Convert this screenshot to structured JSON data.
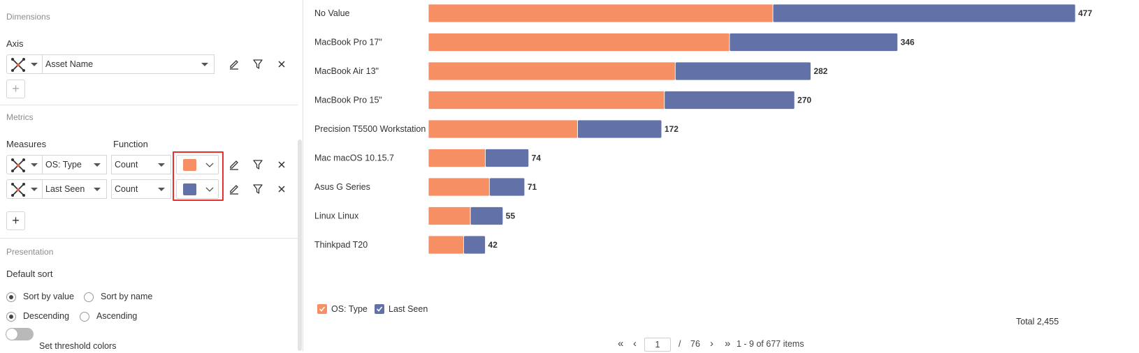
{
  "config": {
    "dimensions": {
      "section_title": "Dimensions",
      "axis_label": "Axis",
      "axis_field": "Asset Name",
      "add_label": "+"
    },
    "metrics": {
      "section_title": "Metrics",
      "measures_label": "Measures",
      "function_label": "Function",
      "rows": [
        {
          "measure": "OS: Type",
          "function": "Count",
          "color": "#f68f64"
        },
        {
          "measure": "Last Seen",
          "function": "Count",
          "color": "#6272a8"
        }
      ],
      "add_label": "+"
    },
    "presentation": {
      "section_title": "Presentation",
      "default_sort_label": "Default sort",
      "sort_by_value": "Sort by value",
      "sort_by_name": "Sort by name",
      "descending": "Descending",
      "ascending": "Ascending",
      "threshold_label": "Set threshold colors"
    },
    "icons": {
      "drag": "drag-move-icon",
      "edit": "pencil-icon",
      "filter": "funnel-icon",
      "remove": "close-icon",
      "chevron": "chevron-down-icon"
    }
  },
  "chart_data": {
    "type": "bar",
    "orientation": "horizontal",
    "stacked": true,
    "categories": [
      "No Value",
      "MacBook Pro 17\"",
      "MacBook Air 13\"",
      "MacBook Pro 15\"",
      "Precision T5500 Workstation",
      "Mac macOS 10.15.7",
      "Asus G Series",
      "Linux Linux",
      "Thinkpad T20"
    ],
    "series": [
      {
        "name": "OS: Type",
        "color": "#f68f64",
        "values": [
          254,
          222,
          182,
          174,
          110,
          42,
          45,
          31,
          26
        ]
      },
      {
        "name": "Last Seen",
        "color": "#6272a8",
        "values": [
          223,
          124,
          100,
          96,
          62,
          32,
          26,
          24,
          16
        ]
      }
    ],
    "totals": [
      "477",
      "346",
      "282",
      "270",
      "172",
      "74",
      "71",
      "55",
      "42"
    ],
    "xlim": [
      0,
      477
    ],
    "legend_position": "bottom-left"
  },
  "legend": {
    "items": [
      "OS: Type",
      "Last Seen"
    ]
  },
  "summary": {
    "total": "Total 2,455"
  },
  "pagination": {
    "current_page": "1",
    "separator": "/",
    "total_pages": "76",
    "range_text": "1 - 9 of 677 items",
    "first": "«",
    "prev": "‹",
    "next": "›",
    "last": "»"
  }
}
